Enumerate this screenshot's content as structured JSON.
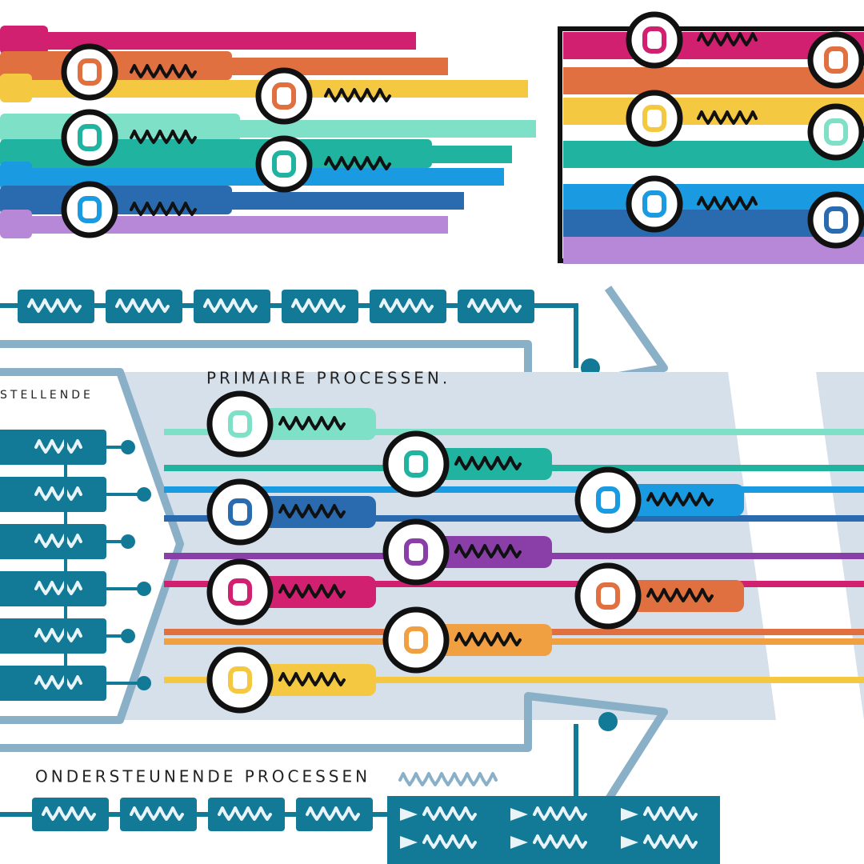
{
  "labels": {
    "primary": "PRIMAIRE PROCESSEN.",
    "supporting": "ONDERSTEUNENDE PROCESSEN",
    "steering": "STELLENDE"
  }
}
